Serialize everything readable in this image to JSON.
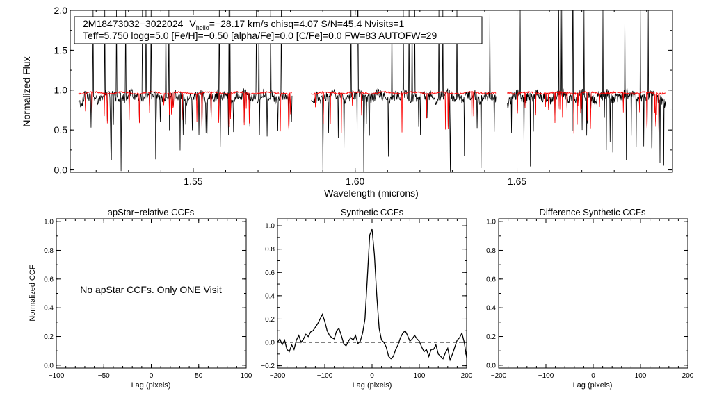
{
  "chart_data": [
    {
      "type": "line",
      "title": "",
      "xlabel": "Wavelength (microns)",
      "ylabel": "Normalized Flux",
      "xlim": [
        1.512,
        1.698
      ],
      "ylim": [
        -0.03,
        2.0
      ],
      "xticks": [
        1.55,
        1.6,
        1.65
      ],
      "xtick_labels": [
        "1.55",
        "1.60",
        "1.65"
      ],
      "yticks": [
        0.0,
        0.5,
        1.0,
        1.5,
        2.0
      ],
      "ytick_labels": [
        "0.0",
        "0.5",
        "1.0",
        "1.5",
        "2.0"
      ],
      "annotation": {
        "star_id": "2M18473032−3022024",
        "v_sym": "V",
        "v_sub": "helio",
        "v_rest": "=−28.17 km/s  chisq=4.07  S/N=45.4  Nvisits=1",
        "line2": "Teff=5,750 logg=5.0 [Fe/H]=−0.50 [alpha/Fe]=0.0 [C/Fe]=0.0 FW=83 AUTOFW=29"
      },
      "detector_chips": [
        [
          1.5145,
          1.5805
        ],
        [
          1.5865,
          1.6435
        ],
        [
          1.647,
          1.696
        ]
      ],
      "series": [
        {
          "name": "Observed spectrum",
          "color": "#000000",
          "mean_level": 0.92
        },
        {
          "name": "Best-fit model",
          "color": "#ff0000",
          "mean_level": 0.965
        }
      ]
    },
    {
      "type": "line",
      "title": "apStar−relative CCFs",
      "xlabel": "Lag (pixels)",
      "ylabel": "Normalized CCF",
      "xlim": [
        -100,
        100
      ],
      "ylim": [
        -0.02,
        1.02
      ],
      "xticks": [
        -100,
        -50,
        0,
        50,
        100
      ],
      "xtick_labels": [
        "−100",
        "−50",
        "0",
        "50",
        "100"
      ],
      "yticks": [
        0.0,
        0.2,
        0.4,
        0.6,
        0.8,
        1.0
      ],
      "ytick_labels": [
        "0.0",
        "0.2",
        "0.4",
        "0.6",
        "0.8",
        "1.0"
      ],
      "message": "No apStar CCFs.  Only ONE Visit",
      "series": []
    },
    {
      "type": "line",
      "title": "Synthetic CCFs",
      "xlabel": "Lag (pixels)",
      "ylabel": "",
      "xlim": [
        -200,
        200
      ],
      "ylim": [
        -0.22,
        1.06
      ],
      "xticks": [
        -200,
        -100,
        0,
        100,
        200
      ],
      "xtick_labels": [
        "−200",
        "−100",
        "0",
        "100",
        "200"
      ],
      "yticks": [
        -0.2,
        0.0,
        0.2,
        0.4,
        0.6,
        0.8,
        1.0
      ],
      "ytick_labels": [
        "−0.2",
        "0.0",
        "0.2",
        "0.4",
        "0.6",
        "0.8",
        "1.0"
      ],
      "reference_line": 0.0,
      "series": [
        {
          "name": "Synthetic CCF",
          "x": [
            -200,
            -195,
            -190,
            -185,
            -180,
            -175,
            -170,
            -165,
            -160,
            -155,
            -150,
            -145,
            -140,
            -135,
            -130,
            -125,
            -120,
            -115,
            -110,
            -105,
            -100,
            -95,
            -90,
            -85,
            -80,
            -75,
            -70,
            -65,
            -60,
            -55,
            -50,
            -45,
            -40,
            -35,
            -30,
            -25,
            -20,
            -15,
            -10,
            -5,
            0,
            5,
            10,
            15,
            20,
            25,
            30,
            35,
            40,
            45,
            50,
            55,
            60,
            65,
            70,
            75,
            80,
            85,
            90,
            95,
            100,
            105,
            110,
            115,
            120,
            125,
            130,
            135,
            140,
            145,
            150,
            155,
            160,
            165,
            170,
            175,
            180,
            185,
            190,
            195,
            200
          ],
          "y": [
            0.0,
            0.03,
            -0.02,
            0.02,
            -0.06,
            -0.08,
            -0.02,
            -0.06,
            0.02,
            0.06,
            0.0,
            0.03,
            0.07,
            0.05,
            0.09,
            0.1,
            0.13,
            0.16,
            0.2,
            0.24,
            0.18,
            0.1,
            0.06,
            0.04,
            0.03,
            0.1,
            0.12,
            0.06,
            -0.01,
            -0.03,
            0.01,
            0.04,
            0.02,
            0.06,
            -0.01,
            0.01,
            0.08,
            0.2,
            0.55,
            0.92,
            0.97,
            0.75,
            0.4,
            0.12,
            0.02,
            0.0,
            -0.04,
            -0.12,
            -0.14,
            -0.12,
            -0.06,
            -0.02,
            0.04,
            0.08,
            0.1,
            0.06,
            0.01,
            0.03,
            0.06,
            0.03,
            0.01,
            -0.04,
            -0.08,
            -0.06,
            -0.12,
            -0.06,
            -0.06,
            -0.02,
            -0.1,
            -0.12,
            -0.14,
            -0.09,
            -0.05,
            -0.15,
            -0.1,
            -0.04,
            0.02,
            0.04,
            0.08,
            0.0,
            -0.13
          ]
        }
      ]
    },
    {
      "type": "line",
      "title": "Difference Synthetic CCFs",
      "xlabel": "Lag (pixels)",
      "ylabel": "",
      "xlim": [
        -200,
        200
      ],
      "ylim": [
        -0.02,
        1.02
      ],
      "xticks": [
        -200,
        -100,
        0,
        100,
        200
      ],
      "xtick_labels": [
        "−200",
        "−100",
        "0",
        "100",
        "200"
      ],
      "yticks": [
        0.0,
        0.2,
        0.4,
        0.6,
        0.8,
        1.0
      ],
      "ytick_labels": [
        "0.0",
        "0.2",
        "0.4",
        "0.6",
        "0.8",
        "1.0"
      ],
      "series": []
    }
  ]
}
